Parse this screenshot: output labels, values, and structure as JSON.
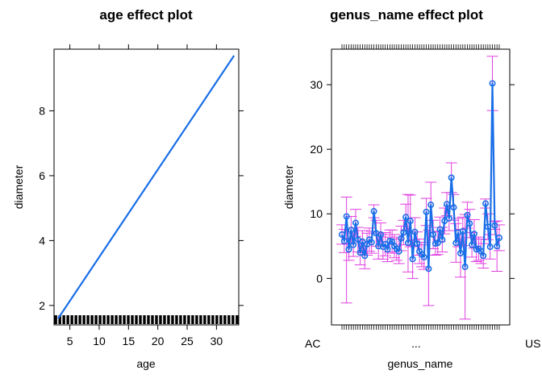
{
  "chart_data": [
    {
      "type": "line",
      "title": "age effect plot",
      "xlabel": "age",
      "ylabel": "diameter",
      "xlim": [
        2.3,
        33.8
      ],
      "ylim": [
        1.4,
        9.9
      ],
      "xticks": [
        5,
        10,
        15,
        20,
        25,
        30
      ],
      "yticks": [
        2,
        4,
        6,
        8
      ],
      "line": {
        "x": [
          3,
          33
        ],
        "y": [
          1.6,
          9.7
        ],
        "color": "#1a6ee8"
      },
      "rug": {
        "x_start": 2.6,
        "x_end": 33.5,
        "count": 46
      }
    },
    {
      "type": "line",
      "title": "genus_name effect plot",
      "xlabel": "genus_name",
      "ylabel": "diameter",
      "ylim": [
        -7.2,
        35.5
      ],
      "yticks": [
        0,
        10,
        20,
        30
      ],
      "line_color": "#1a6ee8",
      "error_color": "#e040e0",
      "x_tick_labels_visible": [
        "AC",
        "...",
        "US"
      ],
      "series": [
        {
          "name": "",
          "values": [
            6.8,
            5.8,
            9.6,
            4.5,
            7.5,
            5.2,
            8.6,
            6.0,
            4.0,
            5.7,
            3.5,
            5.3,
            6.0,
            5.6,
            10.4,
            7.0,
            5.0,
            6.8,
            4.9,
            5.3,
            4.5,
            5.8,
            5.7,
            5.0,
            4.6,
            4.2,
            6.2,
            7.1,
            9.5,
            5.5,
            8.9,
            3.0,
            7.2,
            5.4,
            4.2,
            3.7,
            3.3,
            10.3,
            1.5,
            11.4,
            6.8,
            5.4,
            5.5,
            7.6,
            6.0,
            8.9,
            11.5,
            9.3,
            15.6,
            11.0,
            5.5,
            7.1,
            3.9,
            7.3,
            1.8,
            9.8,
            8.5,
            5.2,
            6.9,
            4.5,
            4.6,
            4.2,
            3.5,
            11.6,
            8.0,
            4.9,
            30.2,
            8.2,
            5.0,
            6.3
          ],
          "upper": [
            8.3,
            7.6,
            12.6,
            6.2,
            9.6,
            7.0,
            10.7,
            7.9,
            5.9,
            7.4,
            5.5,
            7.0,
            7.8,
            7.3,
            11.4,
            9.0,
            7.0,
            8.6,
            6.8,
            7.1,
            6.4,
            7.5,
            7.5,
            6.8,
            6.4,
            6.1,
            8.1,
            9.0,
            11.5,
            13.0,
            12.9,
            6.0,
            9.4,
            7.2,
            6.1,
            5.6,
            5.2,
            12.4,
            7.5,
            14.9,
            9.0,
            7.2,
            7.3,
            9.5,
            7.9,
            10.9,
            13.3,
            11.2,
            17.9,
            13.0,
            8.5,
            9.3,
            7.6,
            9.5,
            9.9,
            11.8,
            10.7,
            7.1,
            9.1,
            6.4,
            6.4,
            6.1,
            5.4,
            12.3,
            10.0,
            6.8,
            34.4,
            8.8,
            8.9,
            8.3
          ],
          "lower": [
            5.3,
            4.0,
            -3.8,
            2.8,
            5.4,
            3.4,
            6.5,
            4.1,
            2.1,
            4.0,
            1.5,
            3.6,
            4.2,
            3.9,
            9.4,
            5.0,
            3.0,
            5.0,
            3.0,
            3.5,
            2.6,
            4.1,
            3.9,
            3.2,
            2.8,
            2.3,
            4.3,
            5.2,
            7.5,
            1.0,
            4.9,
            0.0,
            5.0,
            3.6,
            2.3,
            1.8,
            1.4,
            8.2,
            -4.2,
            7.9,
            4.6,
            3.6,
            3.7,
            5.7,
            4.1,
            6.9,
            9.7,
            7.4,
            13.3,
            9.0,
            2.5,
            4.9,
            0.2,
            5.1,
            -6.3,
            7.8,
            6.3,
            3.3,
            4.7,
            2.6,
            2.8,
            2.3,
            1.6,
            10.9,
            6.0,
            3.0,
            26.0,
            7.6,
            1.1,
            4.3
          ]
        }
      ]
    }
  ]
}
